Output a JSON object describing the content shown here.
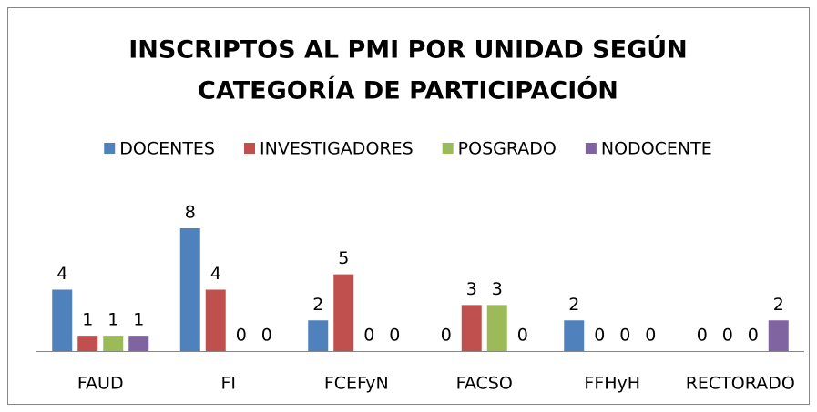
{
  "chart_data": {
    "type": "bar",
    "title": [
      "INSCRIPTOS AL PMI POR UNIDAD SEGÚN",
      "CATEGORÍA DE PARTICIPACIÓN"
    ],
    "categories": [
      "FAUD",
      "FI",
      "FCEFyN",
      "FACSO",
      "FFHyH",
      "RECTORADO"
    ],
    "series": [
      {
        "name": "DOCENTES",
        "color": "#4f81bd",
        "values": [
          4,
          8,
          2,
          0,
          2,
          0
        ]
      },
      {
        "name": "INVESTIGADORES",
        "color": "#c0504d",
        "values": [
          1,
          4,
          5,
          3,
          0,
          0
        ]
      },
      {
        "name": "POSGRADO",
        "color": "#9bbb59",
        "values": [
          1,
          0,
          0,
          3,
          0,
          0
        ]
      },
      {
        "name": "NODOCENTE",
        "color": "#8064a2",
        "values": [
          1,
          0,
          0,
          0,
          0,
          2
        ]
      }
    ],
    "legend": "top"
  }
}
